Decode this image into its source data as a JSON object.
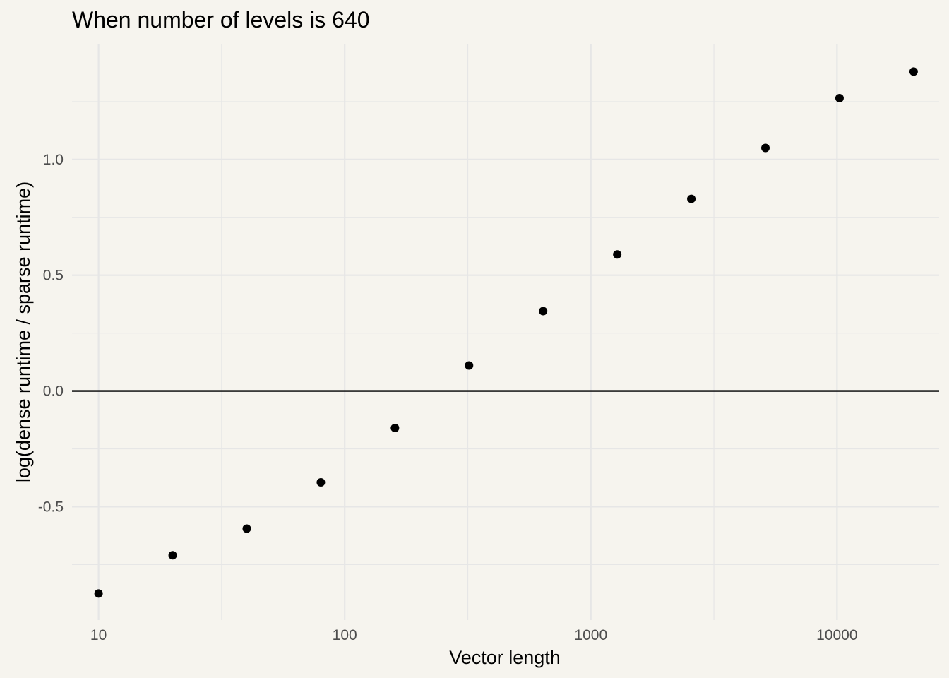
{
  "chart_data": {
    "type": "scatter",
    "title": "When number of levels is 640",
    "xlabel": "Vector length",
    "ylabel": "log(dense runtime / sparse runtime)",
    "x_scale": "log10",
    "x_ticks": [
      10,
      100,
      1000,
      10000
    ],
    "x_tick_labels": [
      "10",
      "100",
      "1000",
      "10000"
    ],
    "y_ticks": [
      -0.5,
      0.0,
      0.5,
      1.0
    ],
    "y_tick_labels": [
      "-0.5",
      "0.0",
      "0.5",
      "1.0"
    ],
    "xlim": [
      7.8,
      26000
    ],
    "ylim": [
      -0.99,
      1.5
    ],
    "grid": true,
    "reference_line_y": 0,
    "colors": {
      "background": "#f6f4ee",
      "grid": "#e6e6e6",
      "points": "#000000",
      "reference_line": "#000000"
    },
    "x": [
      10,
      20,
      40,
      80,
      160,
      320,
      640,
      1280,
      2560,
      5120,
      10240,
      20480
    ],
    "y": [
      -0.875,
      -0.71,
      -0.595,
      -0.395,
      -0.16,
      0.11,
      0.345,
      0.59,
      0.83,
      1.05,
      1.265,
      1.38
    ]
  }
}
